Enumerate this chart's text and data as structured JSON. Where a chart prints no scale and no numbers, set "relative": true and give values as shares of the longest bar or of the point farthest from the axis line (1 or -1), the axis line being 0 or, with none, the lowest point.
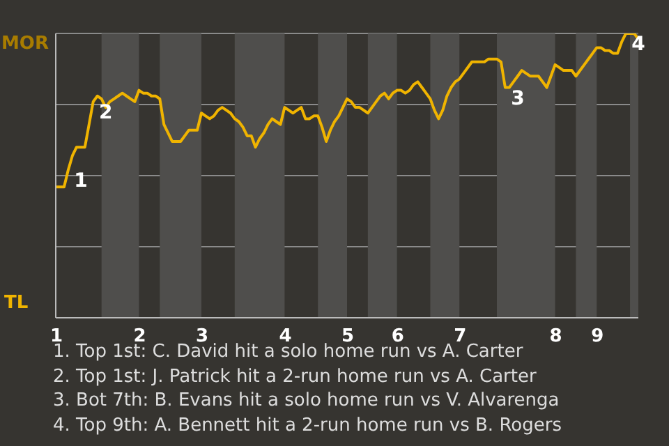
{
  "chart_data": {
    "type": "line",
    "color": "#f0b400",
    "marker": "none",
    "grid": "y",
    "relative": true,
    "categories": [
      "1",
      null,
      null,
      null,
      null,
      null,
      null,
      null,
      null,
      null,
      null,
      null,
      null,
      null,
      null,
      null,
      null,
      null,
      null,
      null,
      "2",
      null,
      null,
      null,
      null,
      null,
      null,
      null,
      null,
      null,
      null,
      null,
      null,
      null,
      null,
      "3",
      null,
      null,
      null,
      null,
      null,
      null,
      null,
      null,
      null,
      null,
      null,
      null,
      null,
      null,
      null,
      null,
      null,
      null,
      null,
      "4",
      null,
      null,
      null,
      null,
      null,
      null,
      null,
      null,
      null,
      null,
      null,
      null,
      null,
      null,
      "5",
      null,
      null,
      null,
      null,
      null,
      null,
      null,
      null,
      null,
      null,
      null,
      "6",
      null,
      null,
      null,
      null,
      null,
      null,
      null,
      null,
      null,
      null,
      null,
      null,
      null,
      null,
      "7",
      null,
      null,
      null,
      null,
      null,
      null,
      null,
      null,
      null,
      null,
      null,
      null,
      null,
      null,
      null,
      null,
      null,
      null,
      null,
      null,
      null,
      null,
      "8",
      null,
      null,
      null,
      null,
      null,
      null,
      null,
      null,
      null,
      "9",
      null,
      null,
      null,
      null,
      null,
      null,
      null,
      null,
      null,
      null
    ],
    "values": [
      0.46,
      0.46,
      0.46,
      0.52,
      0.57,
      0.6,
      0.6,
      0.6,
      0.68,
      0.76,
      0.78,
      0.77,
      0.74,
      0.76,
      0.77,
      0.78,
      0.79,
      0.78,
      0.77,
      0.76,
      0.8,
      0.79,
      0.79,
      0.78,
      0.78,
      0.77,
      0.68,
      0.65,
      0.62,
      0.62,
      0.62,
      0.64,
      0.66,
      0.66,
      0.66,
      0.72,
      0.71,
      0.7,
      0.71,
      0.73,
      0.74,
      0.73,
      0.72,
      0.7,
      0.69,
      0.67,
      0.64,
      0.64,
      0.6,
      0.63,
      0.65,
      0.68,
      0.7,
      0.69,
      0.68,
      0.74,
      0.73,
      0.72,
      0.73,
      0.74,
      0.7,
      0.7,
      0.71,
      0.71,
      0.67,
      0.62,
      0.66,
      0.69,
      0.71,
      0.74,
      0.77,
      0.76,
      0.74,
      0.74,
      0.73,
      0.72,
      0.74,
      0.76,
      0.78,
      0.79,
      0.77,
      0.79,
      0.8,
      0.8,
      0.79,
      0.8,
      0.82,
      0.83,
      0.81,
      0.79,
      0.77,
      0.73,
      0.7,
      0.73,
      0.78,
      0.81,
      0.83,
      0.84,
      0.86,
      0.88,
      0.9,
      0.9,
      0.9,
      0.9,
      0.91,
      0.91,
      0.91,
      0.9,
      0.81,
      0.81,
      0.83,
      0.85,
      0.87,
      0.86,
      0.85,
      0.85,
      0.85,
      0.83,
      0.81,
      0.85,
      0.89,
      0.88,
      0.87,
      0.87,
      0.87,
      0.85,
      0.87,
      0.89,
      0.91,
      0.93,
      0.95,
      0.95,
      0.94,
      0.94,
      0.93,
      0.93,
      0.97,
      1,
      1,
      1,
      0.98
    ],
    "annotations": [
      "MOR",
      "TL",
      "1",
      "2",
      "3",
      "4",
      "1. Top 1st: C. David hit a solo home run vs A. Carter",
      "2. Top 1st: J. Patrick hit a 2-run home run vs A. Carter",
      "3. Bot 7th: B. Evans hit a solo home run vs V. Alvarenga",
      "4. Top 9th: A. Bennett hit a 2-run home run vs B. Rogers"
    ]
  }
}
